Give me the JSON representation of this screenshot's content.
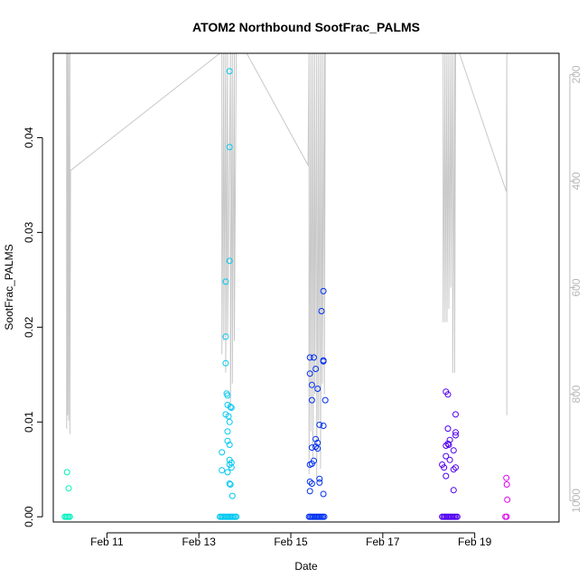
{
  "chart_data": {
    "type": "scatter",
    "title": "ATOM2 Northbound SootFrac_PALMS",
    "xlabel": "Date",
    "ylabel": "SootFrac_PALMS",
    "x_date_range": [
      "2017-02-09T20:00",
      "2017-02-20T20:00"
    ],
    "ylim": [
      -0.00055,
      0.0489
    ],
    "y_ticks": [
      0.0,
      0.01,
      0.02,
      0.03,
      0.04
    ],
    "y_tick_labels": [
      "0.00",
      "0.01",
      "0.02",
      "0.03",
      "0.04"
    ],
    "x_ticks": [
      {
        "date": "2017-02-11T00:00",
        "label": "Feb 11"
      },
      {
        "date": "2017-02-13T00:00",
        "label": "Feb 13"
      },
      {
        "date": "2017-02-15T00:00",
        "label": "Feb 15"
      },
      {
        "date": "2017-02-17T00:00",
        "label": "Feb 17"
      },
      {
        "date": "2017-02-19T00:00",
        "label": "Feb 19"
      }
    ],
    "right_axis": {
      "label": "",
      "range": [
        1040,
        160
      ],
      "ticks": [
        200,
        400,
        600,
        800,
        1000
      ],
      "color": "#bbbbbb"
    },
    "grid": false,
    "legend": "none",
    "profile_color": "#c8c8c8",
    "profile_line": [
      {
        "t": "2017-02-10T03:00",
        "v": 160
      },
      {
        "t": "2017-02-10T03:00",
        "v": 865
      },
      {
        "t": "2017-02-10T03:30",
        "v": 160
      },
      {
        "t": "2017-02-10T03:30",
        "v": 840
      },
      {
        "t": "2017-02-10T04:00",
        "v": 160
      },
      {
        "t": "2017-02-10T04:00",
        "v": 850
      },
      {
        "t": "2017-02-10T04:40",
        "v": 160
      },
      {
        "t": "2017-02-10T04:40",
        "v": 875
      },
      {
        "t": "2017-02-10T05:00",
        "v": 380
      },
      {
        "t": "2017-02-13T11:00",
        "v": 160
      },
      {
        "t": "2017-02-13T12:00",
        "v": 160
      },
      {
        "t": "2017-02-13T12:00",
        "v": 725
      },
      {
        "t": "2017-02-13T13:00",
        "v": 160
      },
      {
        "t": "2017-02-13T13:00",
        "v": 700
      },
      {
        "t": "2017-02-13T14:00",
        "v": 160
      },
      {
        "t": "2017-02-13T14:00",
        "v": 760
      },
      {
        "t": "2017-02-13T15:00",
        "v": 160
      },
      {
        "t": "2017-02-13T15:00",
        "v": 690
      },
      {
        "t": "2017-02-13T16:30",
        "v": 160
      },
      {
        "t": "2017-02-13T16:30",
        "v": 830
      },
      {
        "t": "2017-02-13T17:30",
        "v": 160
      },
      {
        "t": "2017-02-13T17:30",
        "v": 780
      },
      {
        "t": "2017-02-13T18:30",
        "v": 160
      },
      {
        "t": "2017-02-13T18:30",
        "v": 700
      },
      {
        "t": "2017-02-13T19:30",
        "v": 160
      },
      {
        "t": "2017-02-14T01:00",
        "v": 160
      },
      {
        "t": "2017-02-15T09:00",
        "v": 370
      },
      {
        "t": "2017-02-15T09:30",
        "v": 160
      },
      {
        "t": "2017-02-15T09:30",
        "v": 950
      },
      {
        "t": "2017-02-15T10:30",
        "v": 160
      },
      {
        "t": "2017-02-15T10:30",
        "v": 870
      },
      {
        "t": "2017-02-15T11:30",
        "v": 160
      },
      {
        "t": "2017-02-15T11:30",
        "v": 920
      },
      {
        "t": "2017-02-15T12:30",
        "v": 160
      },
      {
        "t": "2017-02-15T12:30",
        "v": 800
      },
      {
        "t": "2017-02-15T13:30",
        "v": 160
      },
      {
        "t": "2017-02-15T13:30",
        "v": 960
      },
      {
        "t": "2017-02-15T14:30",
        "v": 160
      },
      {
        "t": "2017-02-15T14:30",
        "v": 850
      },
      {
        "t": "2017-02-15T15:30",
        "v": 160
      },
      {
        "t": "2017-02-15T15:30",
        "v": 940
      },
      {
        "t": "2017-02-15T16:30",
        "v": 160
      },
      {
        "t": "2017-02-15T16:30",
        "v": 780
      },
      {
        "t": "2017-02-15T17:30",
        "v": 160
      },
      {
        "t": "2017-02-15T17:30",
        "v": 800
      },
      {
        "t": "2017-02-15T18:00",
        "v": 160
      },
      {
        "t": "2017-02-18T07:30",
        "v": 160
      },
      {
        "t": "2017-02-18T07:30",
        "v": 665
      },
      {
        "t": "2017-02-18T08:30",
        "v": 160
      },
      {
        "t": "2017-02-18T08:30",
        "v": 665
      },
      {
        "t": "2017-02-18T09:30",
        "v": 160
      },
      {
        "t": "2017-02-18T09:30",
        "v": 665
      },
      {
        "t": "2017-02-18T10:30",
        "v": 160
      },
      {
        "t": "2017-02-18T10:30",
        "v": 640
      },
      {
        "t": "2017-02-18T11:30",
        "v": 160
      },
      {
        "t": "2017-02-18T11:30",
        "v": 600
      },
      {
        "t": "2017-02-18T12:30",
        "v": 160
      },
      {
        "t": "2017-02-18T12:30",
        "v": 760
      },
      {
        "t": "2017-02-18T13:30",
        "v": 160
      },
      {
        "t": "2017-02-18T13:30",
        "v": 760
      },
      {
        "t": "2017-02-18T14:00",
        "v": 160
      },
      {
        "t": "2017-02-18T16:00",
        "v": 160
      },
      {
        "t": "2017-02-19T16:30",
        "v": 420
      },
      {
        "t": "2017-02-19T16:45",
        "v": 160
      },
      {
        "t": "2017-02-19T16:45",
        "v": 840
      }
    ],
    "series": [
      {
        "color": "#00f0c0",
        "zero_band": [
          "2017-02-10T02:00",
          "2017-02-10T05:00"
        ],
        "points": [
          {
            "t": "2017-02-10T03:10",
            "y": 0.0047
          },
          {
            "t": "2017-02-10T04:00",
            "y": 0.003
          }
        ]
      },
      {
        "color": "#00c8f0",
        "zero_band": [
          "2017-02-13T11:00",
          "2017-02-13T20:00"
        ],
        "points": [
          {
            "t": "2017-02-13T16:00",
            "y": 0.047
          },
          {
            "t": "2017-02-13T16:00",
            "y": 0.039
          },
          {
            "t": "2017-02-13T16:00",
            "y": 0.027
          },
          {
            "t": "2017-02-13T14:00",
            "y": 0.0248
          },
          {
            "t": "2017-02-13T14:00",
            "y": 0.019
          },
          {
            "t": "2017-02-13T14:00",
            "y": 0.0162
          },
          {
            "t": "2017-02-13T14:30",
            "y": 0.013
          },
          {
            "t": "2017-02-13T15:00",
            "y": 0.0128
          },
          {
            "t": "2017-02-13T15:00",
            "y": 0.0118
          },
          {
            "t": "2017-02-13T16:30",
            "y": 0.0116
          },
          {
            "t": "2017-02-13T17:00",
            "y": 0.0115
          },
          {
            "t": "2017-02-13T14:00",
            "y": 0.0108
          },
          {
            "t": "2017-02-13T15:30",
            "y": 0.0106
          },
          {
            "t": "2017-02-13T16:00",
            "y": 0.01
          },
          {
            "t": "2017-02-13T15:00",
            "y": 0.009
          },
          {
            "t": "2017-02-13T15:00",
            "y": 0.008
          },
          {
            "t": "2017-02-13T16:00",
            "y": 0.0076
          },
          {
            "t": "2017-02-13T12:00",
            "y": 0.0068
          },
          {
            "t": "2017-02-13T16:00",
            "y": 0.006
          },
          {
            "t": "2017-02-13T17:00",
            "y": 0.0057
          },
          {
            "t": "2017-02-13T16:00",
            "y": 0.0055
          },
          {
            "t": "2017-02-13T17:00",
            "y": 0.0052
          },
          {
            "t": "2017-02-13T12:00",
            "y": 0.0049
          },
          {
            "t": "2017-02-13T15:00",
            "y": 0.0047
          },
          {
            "t": "2017-02-13T16:00",
            "y": 0.0035
          },
          {
            "t": "2017-02-13T16:30",
            "y": 0.0034
          },
          {
            "t": "2017-02-13T17:30",
            "y": 0.0022
          }
        ]
      },
      {
        "color": "#0030f0",
        "zero_band": [
          "2017-02-15T09:30",
          "2017-02-15T18:00"
        ],
        "points": [
          {
            "t": "2017-02-15T17:00",
            "y": 0.0238
          },
          {
            "t": "2017-02-15T16:00",
            "y": 0.0217
          },
          {
            "t": "2017-02-15T10:00",
            "y": 0.0168
          },
          {
            "t": "2017-02-15T12:00",
            "y": 0.0168
          },
          {
            "t": "2017-02-15T17:00",
            "y": 0.0165
          },
          {
            "t": "2017-02-15T17:00",
            "y": 0.0164
          },
          {
            "t": "2017-02-15T13:00",
            "y": 0.0156
          },
          {
            "t": "2017-02-15T10:00",
            "y": 0.0151
          },
          {
            "t": "2017-02-15T11:00",
            "y": 0.0139
          },
          {
            "t": "2017-02-15T14:00",
            "y": 0.0135
          },
          {
            "t": "2017-02-15T11:00",
            "y": 0.0123
          },
          {
            "t": "2017-02-15T18:00",
            "y": 0.0123
          },
          {
            "t": "2017-02-15T15:00",
            "y": 0.0097
          },
          {
            "t": "2017-02-15T17:00",
            "y": 0.0096
          },
          {
            "t": "2017-02-15T13:00",
            "y": 0.0082
          },
          {
            "t": "2017-02-15T14:00",
            "y": 0.0078
          },
          {
            "t": "2017-02-15T13:00",
            "y": 0.0074
          },
          {
            "t": "2017-02-15T11:00",
            "y": 0.0073
          },
          {
            "t": "2017-02-15T14:00",
            "y": 0.0072
          },
          {
            "t": "2017-02-15T12:00",
            "y": 0.0059
          },
          {
            "t": "2017-02-15T11:00",
            "y": 0.0056
          },
          {
            "t": "2017-02-15T10:00",
            "y": 0.0055
          },
          {
            "t": "2017-02-15T15:00",
            "y": 0.004
          },
          {
            "t": "2017-02-15T10:00",
            "y": 0.0037
          },
          {
            "t": "2017-02-15T11:00",
            "y": 0.0035
          },
          {
            "t": "2017-02-15T15:00",
            "y": 0.0036
          },
          {
            "t": "2017-02-15T10:00",
            "y": 0.0027
          },
          {
            "t": "2017-02-15T17:00",
            "y": 0.0024
          }
        ]
      },
      {
        "color": "#5000f0",
        "zero_band": [
          "2017-02-18T07:00",
          "2017-02-18T15:00"
        ],
        "points": [
          {
            "t": "2017-02-18T09:00",
            "y": 0.0132
          },
          {
            "t": "2017-02-18T10:00",
            "y": 0.0129
          },
          {
            "t": "2017-02-18T14:00",
            "y": 0.0108
          },
          {
            "t": "2017-02-18T10:00",
            "y": 0.0093
          },
          {
            "t": "2017-02-18T14:00",
            "y": 0.0089
          },
          {
            "t": "2017-02-18T14:00",
            "y": 0.0086
          },
          {
            "t": "2017-02-18T11:00",
            "y": 0.0081
          },
          {
            "t": "2017-02-18T10:00",
            "y": 0.0077
          },
          {
            "t": "2017-02-18T10:30",
            "y": 0.0076
          },
          {
            "t": "2017-02-18T09:00",
            "y": 0.0075
          },
          {
            "t": "2017-02-18T13:00",
            "y": 0.007
          },
          {
            "t": "2017-02-18T09:00",
            "y": 0.0064
          },
          {
            "t": "2017-02-18T11:00",
            "y": 0.006
          },
          {
            "t": "2017-02-18T07:00",
            "y": 0.0055
          },
          {
            "t": "2017-02-18T08:00",
            "y": 0.0052
          },
          {
            "t": "2017-02-18T14:00",
            "y": 0.0052
          },
          {
            "t": "2017-02-18T13:00",
            "y": 0.005
          },
          {
            "t": "2017-02-18T09:00",
            "y": 0.0043
          },
          {
            "t": "2017-02-18T13:00",
            "y": 0.0028
          }
        ]
      },
      {
        "color": "#e000f0",
        "zero_band": [
          "2017-02-19T16:00",
          "2017-02-19T17:00"
        ],
        "points": [
          {
            "t": "2017-02-19T16:30",
            "y": 0.0041
          },
          {
            "t": "2017-02-19T16:45",
            "y": 0.0034
          },
          {
            "t": "2017-02-19T17:00",
            "y": 0.0018
          }
        ]
      }
    ]
  }
}
